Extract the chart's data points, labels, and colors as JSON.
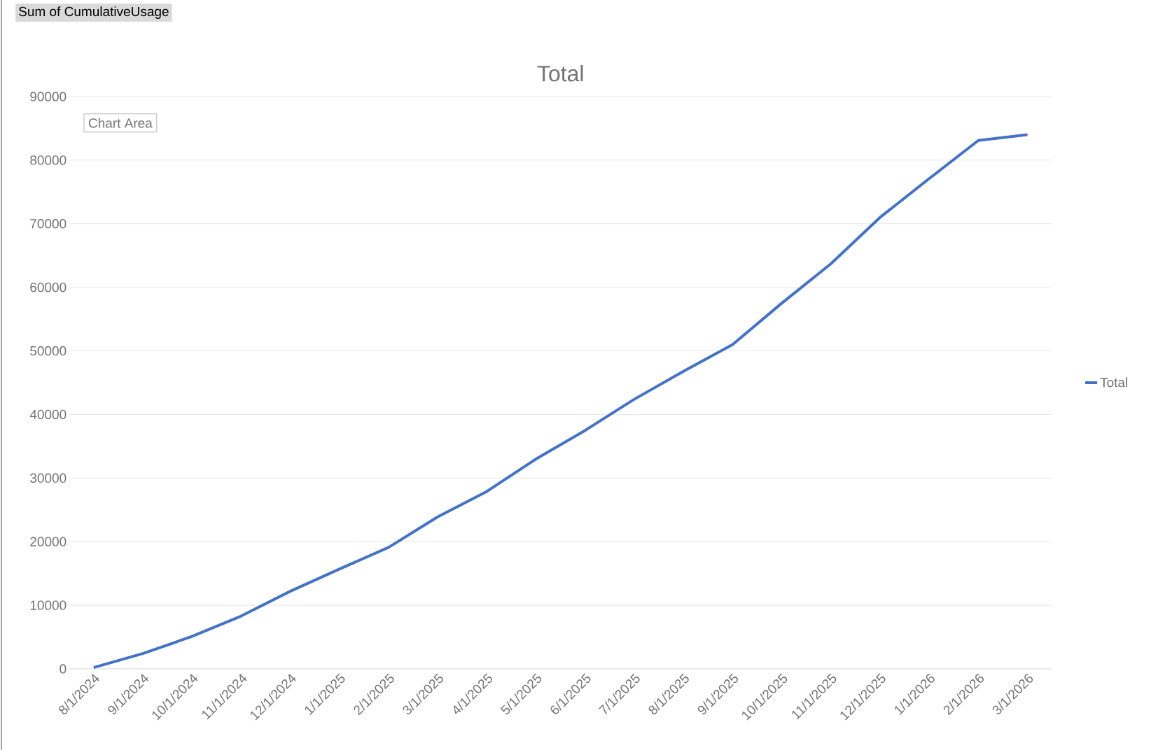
{
  "chart_data": {
    "type": "line",
    "title": "Total",
    "categories": [
      "8/1/2024",
      "9/1/2024",
      "10/1/2024",
      "11/1/2024",
      "12/1/2024",
      "1/1/2025",
      "2/1/2025",
      "3/1/2025",
      "4/1/2025",
      "5/1/2025",
      "6/1/2025",
      "7/1/2025",
      "8/1/2025",
      "9/1/2025",
      "10/1/2025",
      "11/1/2025",
      "12/1/2025",
      "1/1/2026",
      "2/1/2026",
      "3/1/2026"
    ],
    "series": [
      {
        "name": "Total",
        "color": "#4472c4",
        "values": [
          200,
          2400,
          5100,
          8300,
          12200,
          15700,
          19100,
          23900,
          27900,
          33000,
          37500,
          42400,
          46800,
          51000,
          57500,
          63700,
          71000,
          77100,
          83100,
          84000
        ]
      }
    ],
    "ylim": [
      0,
      90000
    ],
    "yticks": [
      0,
      10000,
      20000,
      30000,
      40000,
      50000,
      60000,
      70000,
      80000,
      90000
    ],
    "grid": "y",
    "legend": "right",
    "marker": "none",
    "line_style": "solid",
    "annotations": [
      "Sum of CumulativeUsage",
      "Chart Area"
    ]
  }
}
